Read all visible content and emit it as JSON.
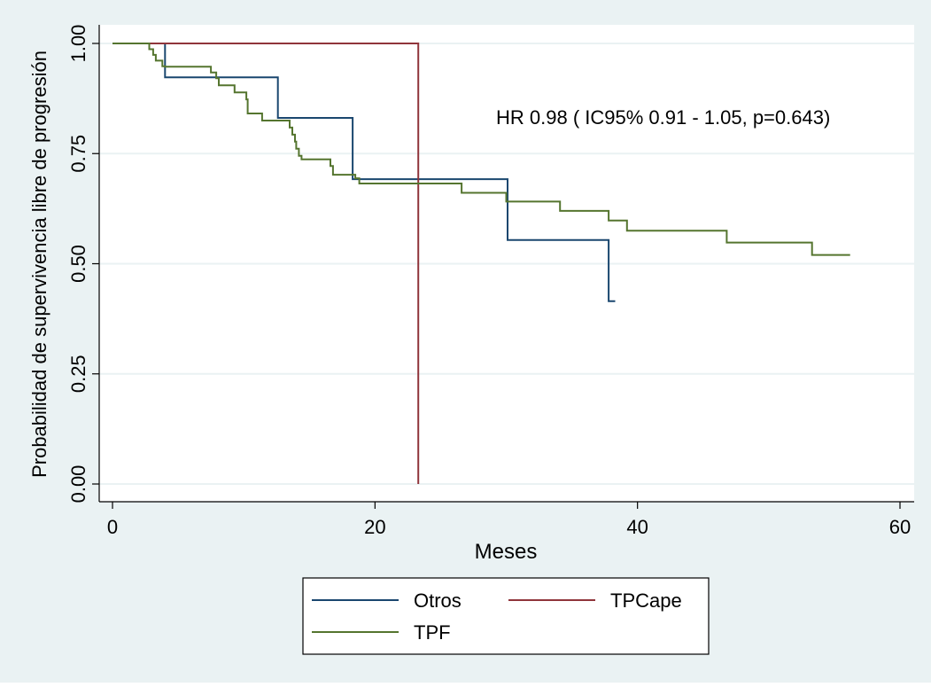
{
  "chart_data": {
    "type": "line",
    "step": true,
    "title": "",
    "xlabel": "Meses",
    "ylabel": "Probabilidad de supervivencia libre de progresión",
    "xlim": [
      0,
      60
    ],
    "ylim": [
      0,
      1
    ],
    "x_ticks": [
      0,
      20,
      40,
      60
    ],
    "x_tick_labels": [
      "0",
      "20",
      "40",
      "60"
    ],
    "y_ticks": [
      0,
      0.25,
      0.5,
      0.75,
      1.0
    ],
    "y_tick_labels": [
      "0.00",
      "0.25",
      "0.50",
      "0.75",
      "1.00"
    ],
    "grid": true,
    "annotation": "HR 0.98 ( IC95% 0.91 - 1.05, p=0.643)",
    "legend": {
      "placement": "bottom",
      "columns": 2
    },
    "series": [
      {
        "name": "Otros",
        "color": "#1a476f",
        "points": [
          [
            0,
            1.0
          ],
          [
            4.0,
            1.0
          ],
          [
            4.0,
            0.923
          ],
          [
            12.6,
            0.923
          ],
          [
            12.6,
            0.831
          ],
          [
            18.3,
            0.831
          ],
          [
            18.3,
            0.692
          ],
          [
            30.1,
            0.692
          ],
          [
            30.1,
            0.554
          ],
          [
            37.8,
            0.554
          ],
          [
            37.8,
            0.415
          ],
          [
            38.3,
            0.415
          ]
        ]
      },
      {
        "name": "TPCape",
        "color": "#90353b",
        "points": [
          [
            0,
            1.0
          ],
          [
            23.3,
            1.0
          ],
          [
            23.3,
            0.0
          ]
        ]
      },
      {
        "name": "TPF",
        "color": "#55752f",
        "points": [
          [
            0,
            1.0
          ],
          [
            2.8,
            1.0
          ],
          [
            2.8,
            0.987
          ],
          [
            3.1,
            0.987
          ],
          [
            3.1,
            0.974
          ],
          [
            3.3,
            0.974
          ],
          [
            3.3,
            0.961
          ],
          [
            3.8,
            0.961
          ],
          [
            3.8,
            0.948
          ],
          [
            4.0,
            0.948
          ],
          [
            4.0,
            0.947
          ],
          [
            7.5,
            0.947
          ],
          [
            7.5,
            0.934
          ],
          [
            7.9,
            0.934
          ],
          [
            7.9,
            0.921
          ],
          [
            8.1,
            0.921
          ],
          [
            8.1,
            0.905
          ],
          [
            9.3,
            0.905
          ],
          [
            9.3,
            0.889
          ],
          [
            10.2,
            0.889
          ],
          [
            10.2,
            0.873
          ],
          [
            10.3,
            0.873
          ],
          [
            10.3,
            0.841
          ],
          [
            11.4,
            0.841
          ],
          [
            11.4,
            0.825
          ],
          [
            13.5,
            0.825
          ],
          [
            13.5,
            0.809
          ],
          [
            13.7,
            0.809
          ],
          [
            13.7,
            0.793
          ],
          [
            13.9,
            0.793
          ],
          [
            13.9,
            0.777
          ],
          [
            14.0,
            0.777
          ],
          [
            14.0,
            0.761
          ],
          [
            14.2,
            0.761
          ],
          [
            14.2,
            0.745
          ],
          [
            14.4,
            0.745
          ],
          [
            14.4,
            0.737
          ],
          [
            16.6,
            0.737
          ],
          [
            16.6,
            0.722
          ],
          [
            16.8,
            0.722
          ],
          [
            16.8,
            0.702
          ],
          [
            18.5,
            0.702
          ],
          [
            18.5,
            0.694
          ],
          [
            18.8,
            0.694
          ],
          [
            18.8,
            0.682
          ],
          [
            26.6,
            0.682
          ],
          [
            26.6,
            0.661
          ],
          [
            30.0,
            0.661
          ],
          [
            30.0,
            0.641
          ],
          [
            34.1,
            0.641
          ],
          [
            34.1,
            0.62
          ],
          [
            37.8,
            0.62
          ],
          [
            37.8,
            0.598
          ],
          [
            39.2,
            0.598
          ],
          [
            39.2,
            0.575
          ],
          [
            46.8,
            0.575
          ],
          [
            46.8,
            0.548
          ],
          [
            53.3,
            0.548
          ],
          [
            53.3,
            0.52
          ],
          [
            56.2,
            0.52
          ]
        ]
      }
    ]
  },
  "colors": {
    "outer_background": "#eaf2f3",
    "plot_background": "#ffffff",
    "grid": "#eaf2f3",
    "axis": "#000000"
  }
}
